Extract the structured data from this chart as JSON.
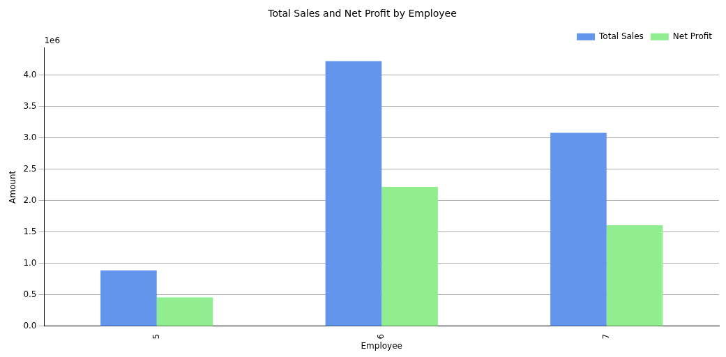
{
  "chart_data": {
    "type": "bar",
    "title": "Total Sales and Net Profit by Employee",
    "xlabel": "Employee",
    "ylabel": "Amount",
    "categories": [
      "5",
      "6",
      "7"
    ],
    "series": [
      {
        "name": "Total Sales",
        "color": "#6495ed",
        "values": [
          0.89,
          4.22,
          3.08
        ]
      },
      {
        "name": "Net Profit",
        "color": "#90ee90",
        "values": [
          0.46,
          2.22,
          1.61
        ]
      }
    ],
    "ylim": [
      0,
      4.43
    ],
    "yticks": [
      {
        "value": 0,
        "label": "0.0"
      },
      0.5,
      {
        "value": 1,
        "label": "1.0"
      },
      1.5,
      {
        "value": 2,
        "label": "2.0"
      },
      2.5,
      {
        "value": 3,
        "label": "3.0"
      },
      3.5,
      {
        "value": 4,
        "label": "4.0"
      }
    ],
    "grid": "y",
    "legend": "top right",
    "annotations": [
      "1e6"
    ]
  }
}
